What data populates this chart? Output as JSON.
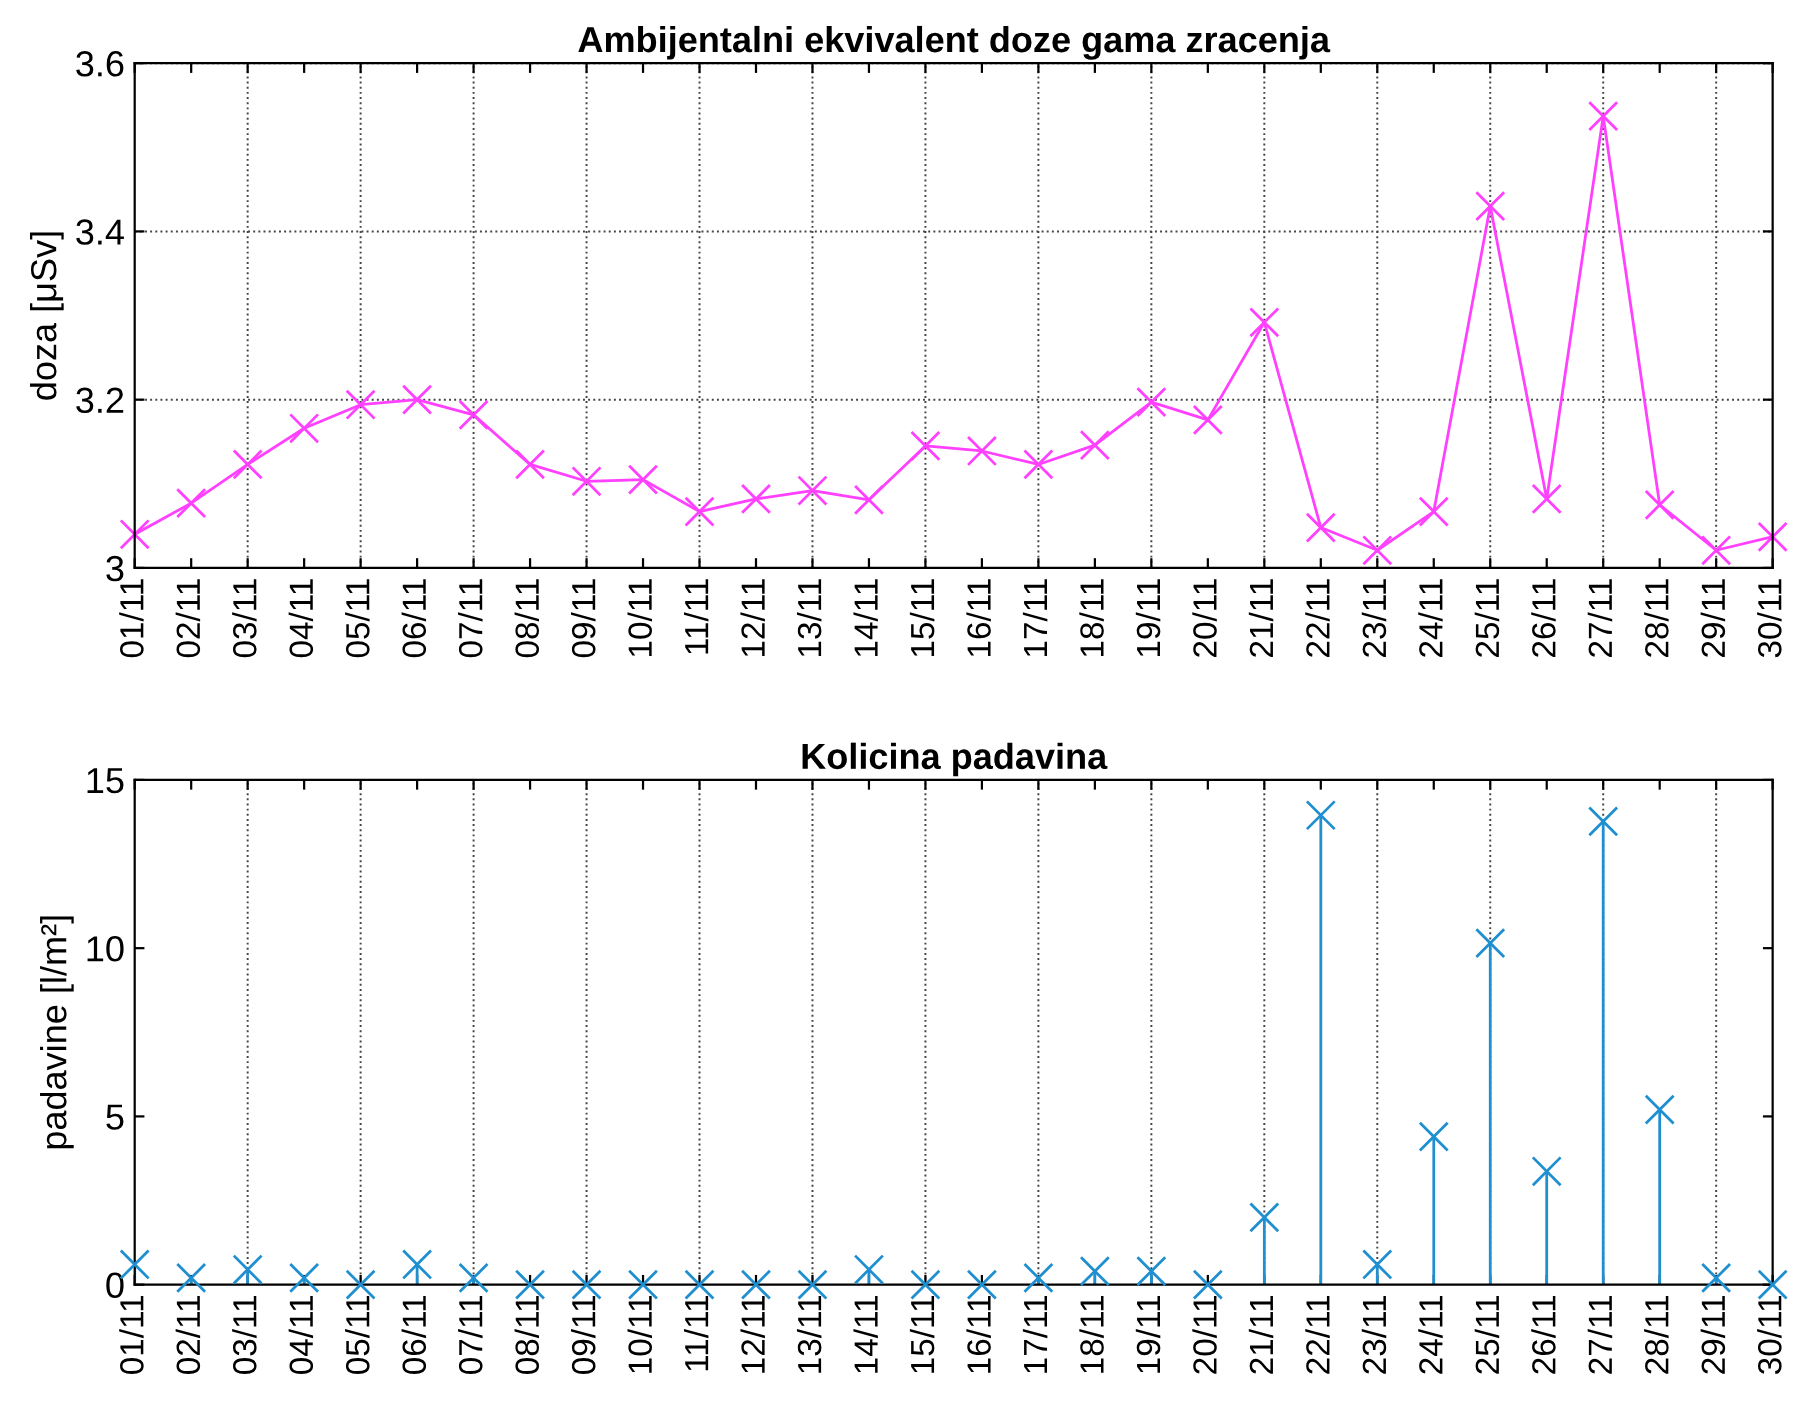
{
  "chart_data": [
    {
      "type": "line",
      "title": "Ambijentalni ekvivalent doze gama zracenja",
      "ylabel": "doza [μSv]",
      "categories": [
        "01/11",
        "02/11",
        "03/11",
        "04/11",
        "05/11",
        "06/11",
        "07/11",
        "08/11",
        "09/11",
        "10/11",
        "11/11",
        "12/11",
        "13/11",
        "14/11",
        "15/11",
        "16/11",
        "17/11",
        "18/11",
        "19/11",
        "20/11",
        "21/11",
        "22/11",
        "23/11",
        "24/11",
        "25/11",
        "26/11",
        "27/11",
        "28/11",
        "29/11",
        "30/11"
      ],
      "series": [
        {
          "color": "#ff40ff",
          "values": [
            3.04,
            3.077,
            3.123,
            3.166,
            3.194,
            3.2,
            3.182,
            3.123,
            3.103,
            3.105,
            3.067,
            3.082,
            3.092,
            3.081,
            3.145,
            3.139,
            3.123,
            3.146,
            3.197,
            3.176,
            3.292,
            3.048,
            3.021,
            3.067,
            3.43,
            3.082,
            3.537,
            3.075,
            3.021,
            3.037
          ]
        }
      ],
      "ylim": [
        3,
        3.6
      ],
      "yticks": [
        3,
        3.2,
        3.4,
        3.6
      ],
      "grid": true,
      "marker": "cross",
      "line_style": "solid"
    },
    {
      "type": "lollipop",
      "title": "Kolicina padavina",
      "ylabel": "padavine [l/m²]",
      "categories": [
        "01/11",
        "02/11",
        "03/11",
        "04/11",
        "05/11",
        "06/11",
        "07/11",
        "08/11",
        "09/11",
        "10/11",
        "11/11",
        "12/11",
        "13/11",
        "14/11",
        "15/11",
        "16/11",
        "17/11",
        "18/11",
        "19/11",
        "20/11",
        "21/11",
        "22/11",
        "23/11",
        "24/11",
        "25/11",
        "26/11",
        "27/11",
        "28/11",
        "29/11",
        "30/11"
      ],
      "series": [
        {
          "color": "#1f8fd0",
          "values": [
            0.6,
            0.2,
            0.45,
            0.2,
            0,
            0.6,
            0.2,
            0,
            0,
            0,
            0,
            0,
            0,
            0.45,
            0,
            0,
            0.2,
            0.4,
            0.4,
            0,
            2.0,
            13.95,
            0.6,
            4.4,
            10.15,
            3.37,
            13.77,
            5.2,
            0.2,
            0
          ]
        }
      ],
      "ylim": [
        0,
        15
      ],
      "yticks": [
        0,
        5,
        10,
        15
      ],
      "grid": "x",
      "marker": "cross"
    }
  ]
}
